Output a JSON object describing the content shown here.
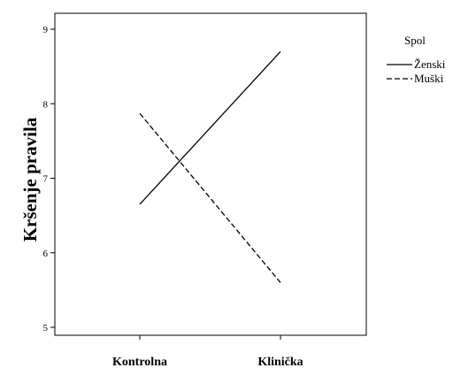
{
  "chart_data": {
    "type": "line",
    "ylabel": "Kršenje pravila",
    "xlabel": "",
    "categories": [
      "Kontrolna",
      "Klinička"
    ],
    "ylim": [
      5,
      9
    ],
    "yticks": [
      "5",
      "6",
      "7",
      "8",
      "9"
    ],
    "grid": false,
    "legend": {
      "title": "Spol",
      "placement": "top-right, outside plot"
    },
    "series": [
      {
        "name": "Ženski",
        "values": [
          6.65,
          8.7
        ],
        "line_style": "solid",
        "color": "#000000"
      },
      {
        "name": "Muški",
        "values": [
          7.87,
          5.6
        ],
        "line_style": "dashed",
        "color": "#000000"
      }
    ]
  }
}
